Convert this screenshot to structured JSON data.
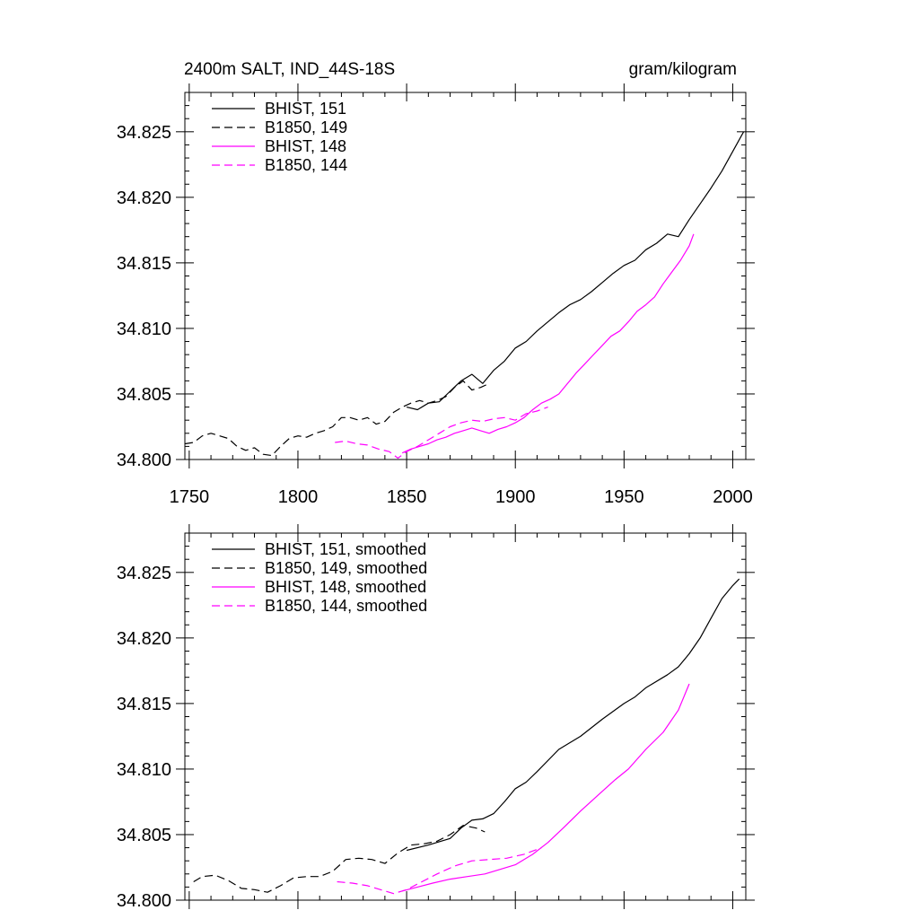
{
  "chart_data": [
    {
      "type": "line",
      "title": "2400m SALT, IND_44S-18S",
      "units": "gram/kilogram",
      "xlim": [
        1748,
        2006
      ],
      "ylim": [
        34.8,
        34.828
      ],
      "xticks": [
        1750,
        1800,
        1850,
        1900,
        1950,
        2000
      ],
      "xtick_labels": [
        "1750",
        "1800",
        "1850",
        "1900",
        "1950",
        "2000"
      ],
      "yticks": [
        34.8,
        34.805,
        34.81,
        34.815,
        34.82,
        34.825
      ],
      "ytick_labels": [
        "34.800",
        "34.805",
        "34.810",
        "34.815",
        "34.820",
        "34.825"
      ],
      "legend_position": "top-left",
      "grid": false,
      "series": [
        {
          "name": "BHIST, 151",
          "color": "#000000",
          "dash": "solid",
          "x": [
            1850,
            1855,
            1860,
            1865,
            1870,
            1875,
            1880,
            1885,
            1890,
            1895,
            1900,
            1905,
            1910,
            1915,
            1920,
            1925,
            1930,
            1935,
            1940,
            1945,
            1950,
            1955,
            1960,
            1965,
            1970,
            1975,
            1980,
            1985,
            1990,
            1995,
            2000,
            2005
          ],
          "y": [
            34.804,
            34.8038,
            34.8043,
            34.8044,
            34.8052,
            34.806,
            34.8065,
            34.8058,
            34.8068,
            34.8075,
            34.8085,
            34.809,
            34.8098,
            34.8105,
            34.8112,
            34.8118,
            34.8122,
            34.8128,
            34.8135,
            34.8142,
            34.8148,
            34.8152,
            34.816,
            34.8165,
            34.8172,
            34.817,
            34.8183,
            34.8195,
            34.8207,
            34.822,
            34.8235,
            34.825
          ]
        },
        {
          "name": "B1850, 149",
          "color": "#000000",
          "dash": "dashed",
          "x": [
            1748,
            1752,
            1756,
            1760,
            1764,
            1768,
            1772,
            1776,
            1780,
            1784,
            1788,
            1792,
            1796,
            1800,
            1804,
            1808,
            1812,
            1816,
            1820,
            1824,
            1828,
            1832,
            1836,
            1840,
            1844,
            1848,
            1852,
            1856,
            1860,
            1864,
            1868,
            1872,
            1876,
            1880,
            1884,
            1888
          ],
          "y": [
            34.8012,
            34.8013,
            34.8018,
            34.802,
            34.8018,
            34.8016,
            34.801,
            34.8007,
            34.8009,
            34.8004,
            34.8003,
            34.801,
            34.8016,
            34.8018,
            34.8017,
            34.802,
            34.8022,
            34.8025,
            34.8032,
            34.8032,
            34.803,
            34.8032,
            34.8027,
            34.8029,
            34.8036,
            34.804,
            34.8043,
            34.8045,
            34.8043,
            34.8045,
            34.8048,
            34.8055,
            34.806,
            34.8053,
            34.8055,
            34.8058
          ]
        },
        {
          "name": "BHIST, 148",
          "color": "#ff00ff",
          "dash": "solid",
          "x": [
            1848,
            1852,
            1856,
            1860,
            1864,
            1868,
            1872,
            1876,
            1880,
            1884,
            1888,
            1892,
            1896,
            1900,
            1904,
            1908,
            1912,
            1916,
            1920,
            1924,
            1928,
            1932,
            1936,
            1940,
            1944,
            1948,
            1952,
            1956,
            1960,
            1964,
            1968,
            1972,
            1976,
            1980,
            1982
          ],
          "y": [
            34.8005,
            34.8008,
            34.801,
            34.8012,
            34.8015,
            34.8017,
            34.802,
            34.8022,
            34.8024,
            34.8022,
            34.802,
            34.8023,
            34.8025,
            34.8028,
            34.8032,
            34.8038,
            34.8043,
            34.8046,
            34.805,
            34.8058,
            34.8066,
            34.8073,
            34.808,
            34.8087,
            34.8094,
            34.8098,
            34.8105,
            34.8113,
            34.8118,
            34.8124,
            34.8134,
            34.8143,
            34.8152,
            34.8163,
            34.8172
          ]
        },
        {
          "name": "B1850, 144",
          "color": "#ff00ff",
          "dash": "dashed",
          "x": [
            1817,
            1822,
            1827,
            1832,
            1837,
            1842,
            1846,
            1850,
            1855,
            1860,
            1865,
            1870,
            1875,
            1880,
            1885,
            1890,
            1895,
            1900,
            1905,
            1910,
            1915
          ],
          "y": [
            34.8013,
            34.8014,
            34.8012,
            34.8011,
            34.8008,
            34.8006,
            34.8001,
            34.8006,
            34.801,
            34.8015,
            34.802,
            34.8025,
            34.8028,
            34.803,
            34.8029,
            34.8031,
            34.8032,
            34.803,
            34.8035,
            34.8037,
            34.804
          ]
        }
      ]
    },
    {
      "type": "line",
      "xlim": [
        1748,
        2006
      ],
      "ylim": [
        34.8,
        34.828
      ],
      "xticks": [
        1750,
        1800,
        1850,
        1900,
        1950,
        2000
      ],
      "yticks": [
        34.8,
        34.805,
        34.81,
        34.815,
        34.82,
        34.825
      ],
      "ytick_labels": [
        "34.800",
        "34.805",
        "34.810",
        "34.815",
        "34.820",
        "34.825"
      ],
      "legend_position": "top-left",
      "grid": false,
      "series": [
        {
          "name": "BHIST, 151, smoothed",
          "color": "#000000",
          "dash": "solid",
          "x": [
            1850,
            1860,
            1870,
            1875,
            1880,
            1885,
            1890,
            1895,
            1900,
            1905,
            1910,
            1920,
            1930,
            1940,
            1950,
            1955,
            1960,
            1970,
            1975,
            1980,
            1985,
            1990,
            1995,
            2000,
            2003
          ],
          "y": [
            34.8038,
            34.8042,
            34.8047,
            34.8055,
            34.8061,
            34.8062,
            34.8066,
            34.8075,
            34.8085,
            34.809,
            34.8098,
            34.8115,
            34.8125,
            34.8138,
            34.815,
            34.8155,
            34.8162,
            34.8172,
            34.8178,
            34.8188,
            34.82,
            34.8215,
            34.823,
            34.824,
            34.8245
          ]
        },
        {
          "name": "B1850, 149, smoothed",
          "color": "#000000",
          "dash": "dashed",
          "x": [
            1752,
            1756,
            1762,
            1768,
            1774,
            1780,
            1786,
            1792,
            1798,
            1804,
            1810,
            1816,
            1822,
            1828,
            1834,
            1840,
            1846,
            1852,
            1858,
            1864,
            1870,
            1876,
            1882,
            1886
          ],
          "y": [
            34.8014,
            34.8018,
            34.8019,
            34.8015,
            34.8009,
            34.8008,
            34.8006,
            34.8011,
            34.8017,
            34.8018,
            34.8018,
            34.8022,
            34.8031,
            34.8032,
            34.8031,
            34.8028,
            34.8036,
            34.8042,
            34.8043,
            34.8045,
            34.805,
            34.8057,
            34.8055,
            34.8052
          ]
        },
        {
          "name": "BHIST, 148, smoothed",
          "color": "#ff00ff",
          "dash": "solid",
          "x": [
            1848,
            1855,
            1862,
            1870,
            1878,
            1886,
            1892,
            1900,
            1908,
            1915,
            1922,
            1930,
            1938,
            1946,
            1952,
            1960,
            1968,
            1975,
            1980
          ],
          "y": [
            34.8007,
            34.801,
            34.8013,
            34.8016,
            34.8018,
            34.802,
            34.8023,
            34.8027,
            34.8035,
            34.8044,
            34.8055,
            34.8068,
            34.808,
            34.8092,
            34.81,
            34.8115,
            34.8128,
            34.8145,
            34.8165
          ]
        },
        {
          "name": "B1850, 144, smoothed",
          "color": "#ff00ff",
          "dash": "dashed",
          "x": [
            1818,
            1825,
            1832,
            1838,
            1844,
            1850,
            1857,
            1864,
            1872,
            1880,
            1888,
            1896,
            1904,
            1912
          ],
          "y": [
            34.8014,
            34.8013,
            34.8011,
            34.8008,
            34.8005,
            34.8008,
            34.8014,
            34.802,
            34.8026,
            34.803,
            34.8031,
            34.8032,
            34.8035,
            34.804
          ]
        }
      ]
    }
  ]
}
